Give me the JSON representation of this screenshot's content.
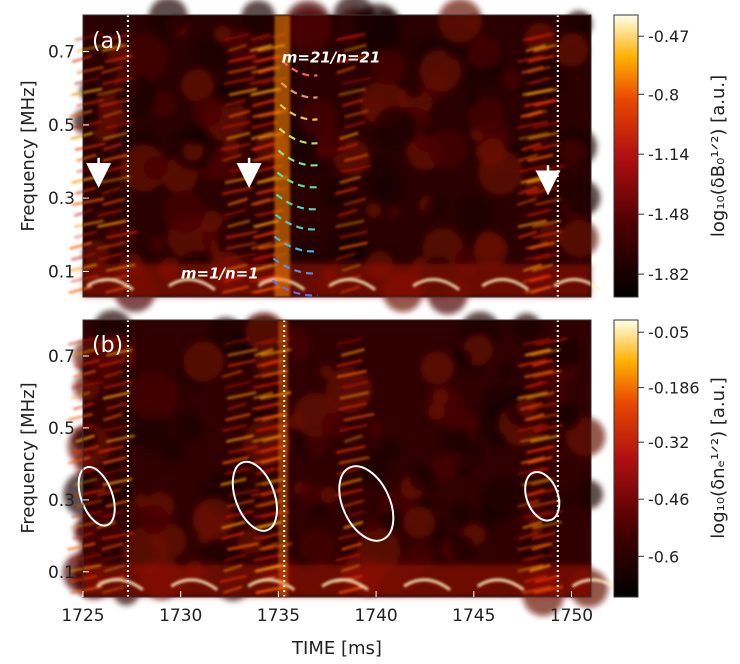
{
  "chart_data": [
    {
      "type": "heatmap",
      "panel_label": "(a)",
      "xlabel": "",
      "ylabel": "Frequency [MHz]",
      "xlim": [
        1725,
        1751
      ],
      "ylim": [
        0.03,
        0.8
      ],
      "yticks": [
        0.1,
        0.3,
        0.5,
        0.7
      ],
      "ytick_labels": [
        "0.1",
        "0.3",
        "0.5",
        "0.7"
      ],
      "colorbar": {
        "label": "log₁₀(δB₀¹ᐟ²) [a.u.]",
        "ticks": [
          -0.47,
          -0.8,
          -1.14,
          -1.48,
          -1.82
        ],
        "tick_labels": [
          "-0.47",
          "-0.8",
          "-1.14",
          "-1.48",
          "-1.82"
        ],
        "range": [
          -1.95,
          -0.35
        ]
      },
      "vertical_lines": [
        1727.3,
        1749.3
      ],
      "arrows": [
        {
          "x": 1725.8,
          "y_from": 0.41,
          "y_to": 0.34
        },
        {
          "x": 1733.5,
          "y_from": 0.41,
          "y_to": 0.34
        },
        {
          "x": 1748.8,
          "y_from": 0.39,
          "y_to": 0.32
        }
      ],
      "annotations": [
        {
          "text": "m=21/n=21",
          "x": 1737.7,
          "y": 0.67
        },
        {
          "text": "m=1/n=1",
          "x": 1732.0,
          "y": 0.08
        }
      ],
      "mode_ladder": {
        "x_start": 1735.0,
        "x_end": 1737.0,
        "frequencies": [
          0.035,
          0.095,
          0.155,
          0.215,
          0.27,
          0.33,
          0.39,
          0.45,
          0.515,
          0.575,
          0.635
        ],
        "colors": [
          "#6a6ae8",
          "#5c8ae0",
          "#4fb4e0",
          "#4fc8c8",
          "#4fd8b0",
          "#5ce0a0",
          "#8ee08c",
          "#c8d86e",
          "#e0c060",
          "#e89a5a",
          "#ec6a5a"
        ]
      }
    },
    {
      "type": "heatmap",
      "panel_label": "(b)",
      "xlabel": "TIME [ms]",
      "ylabel": "Frequency [MHz]",
      "xlim": [
        1725,
        1751
      ],
      "ylim": [
        0.03,
        0.8
      ],
      "xticks": [
        1725,
        1730,
        1735,
        1740,
        1745,
        1750
      ],
      "xtick_labels": [
        "1725",
        "1730",
        "1735",
        "1740",
        "1745",
        "1750"
      ],
      "yticks": [
        0.1,
        0.3,
        0.5,
        0.7
      ],
      "ytick_labels": [
        "0.1",
        "0.3",
        "0.5",
        "0.7"
      ],
      "colorbar": {
        "label": "log₁₀(δnₑ¹ᐟ²) [a.u.]",
        "ticks": [
          -0.05,
          -0.186,
          -0.32,
          -0.46,
          -0.6
        ],
        "tick_labels": [
          "-0.05",
          "-0.186",
          "-0.32",
          "-0.46",
          "-0.6"
        ],
        "range": [
          -0.7,
          -0.02
        ]
      },
      "vertical_lines": [
        1727.3,
        1735.3,
        1749.3
      ],
      "ellipses": [
        {
          "cx": 1725.7,
          "cy": 0.31,
          "rx_ms": 0.8,
          "ry_mhz": 0.085,
          "tilt_deg": -20
        },
        {
          "cx": 1733.8,
          "cy": 0.31,
          "rx_ms": 1.0,
          "ry_mhz": 0.1,
          "tilt_deg": -20
        },
        {
          "cx": 1739.5,
          "cy": 0.29,
          "rx_ms": 1.2,
          "ry_mhz": 0.11,
          "tilt_deg": -25
        },
        {
          "cx": 1748.5,
          "cy": 0.31,
          "rx_ms": 0.8,
          "ry_mhz": 0.07,
          "tilt_deg": -20
        }
      ]
    }
  ]
}
